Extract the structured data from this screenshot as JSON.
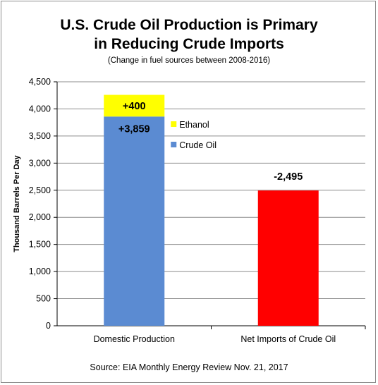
{
  "chart_data": {
    "type": "bar",
    "title_line1": "U.S. Crude Oil Production is Primary",
    "title_line2": "in Reducing Crude Imports",
    "subtitle": "(Change in fuel sources between 2008-2016)",
    "ylabel": "Thousand Barrels Per Day",
    "xlabel": "",
    "ylim": [
      0,
      4500
    ],
    "yticks": [
      "0",
      "500",
      "1,000",
      "1,500",
      "2,000",
      "2,500",
      "3,000",
      "3,500",
      "4,000",
      "4,500"
    ],
    "ytick_values": [
      0,
      500,
      1000,
      1500,
      2000,
      2500,
      3000,
      3500,
      4000,
      4500
    ],
    "categories": [
      "Domestic Production",
      "Net Imports of Crude Oil"
    ],
    "series": [
      {
        "name": "Crude Oil",
        "color": "#5b8bd2",
        "values": [
          3859,
          null
        ],
        "labels": [
          "+3,859",
          ""
        ]
      },
      {
        "name": "Ethanol",
        "color": "#ffff00",
        "values": [
          400,
          null
        ],
        "labels": [
          "+400",
          ""
        ]
      },
      {
        "name": "",
        "color": "#ff0000",
        "values": [
          null,
          2495
        ],
        "labels": [
          "",
          "-2,495"
        ]
      }
    ],
    "legend": [
      {
        "name": "Ethanol",
        "color": "#ffff00"
      },
      {
        "name": "Crude Oil",
        "color": "#5b8bd2"
      }
    ],
    "legend_position": "right of first bar",
    "grid": true,
    "source": "Source: EIA Monthly Energy Review Nov. 21, 2017"
  }
}
